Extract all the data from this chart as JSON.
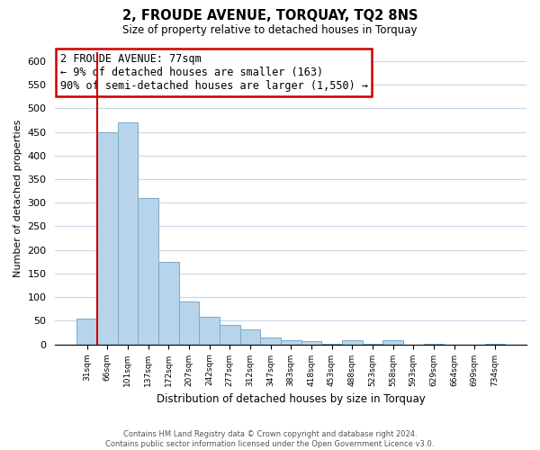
{
  "title": "2, FROUDE AVENUE, TORQUAY, TQ2 8NS",
  "subtitle": "Size of property relative to detached houses in Torquay",
  "xlabel": "Distribution of detached houses by size in Torquay",
  "ylabel": "Number of detached properties",
  "bar_labels": [
    "31sqm",
    "66sqm",
    "101sqm",
    "137sqm",
    "172sqm",
    "207sqm",
    "242sqm",
    "277sqm",
    "312sqm",
    "347sqm",
    "383sqm",
    "418sqm",
    "453sqm",
    "488sqm",
    "523sqm",
    "558sqm",
    "593sqm",
    "629sqm",
    "664sqm",
    "699sqm",
    "734sqm"
  ],
  "bar_values": [
    55,
    450,
    470,
    310,
    175,
    90,
    58,
    42,
    32,
    15,
    8,
    7,
    2,
    8,
    2,
    8,
    0,
    2,
    0,
    0,
    2
  ],
  "bar_color": "#b8d4ea",
  "bar_edge_color": "#7aaac8",
  "vline_color": "#cc0000",
  "vline_x_index": 1,
  "ylim": [
    0,
    620
  ],
  "yticks": [
    0,
    50,
    100,
    150,
    200,
    250,
    300,
    350,
    400,
    450,
    500,
    550,
    600
  ],
  "annotation_title": "2 FROUDE AVENUE: 77sqm",
  "annotation_line1": "← 9% of detached houses are smaller (163)",
  "annotation_line2": "90% of semi-detached houses are larger (1,550) →",
  "annotation_box_color": "#ffffff",
  "annotation_box_edge": "#cc0000",
  "footer_line1": "Contains HM Land Registry data © Crown copyright and database right 2024.",
  "footer_line2": "Contains public sector information licensed under the Open Government Licence v3.0.",
  "bg_color": "#ffffff",
  "grid_color": "#c8d8e8"
}
